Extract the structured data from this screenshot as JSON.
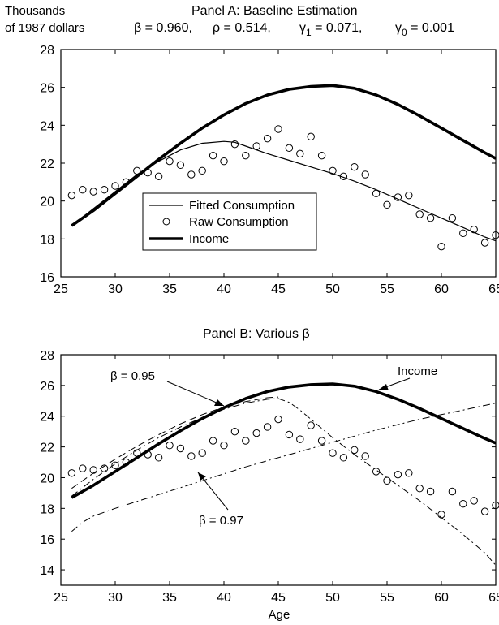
{
  "chart_data": [
    {
      "type": "line",
      "title": "Panel A: Baseline Estimation",
      "subtitle": {
        "prefix_beta": "β = 0.960,",
        "rho": "ρ = 0.514,",
        "gamma1": {
          "greek": "γ",
          "sub": "1",
          "rest": " = 0.071,"
        },
        "gamma0": {
          "greek": "γ",
          "sub": "0",
          "rest": " = 0.001"
        }
      },
      "ylabel_lines": [
        "Thousands",
        "of 1987 dollars"
      ],
      "xlabel": "",
      "xlim": [
        25,
        65
      ],
      "ylim": [
        16,
        28
      ],
      "xticks": [
        25,
        30,
        35,
        40,
        45,
        50,
        55,
        60,
        65
      ],
      "yticks": [
        16,
        18,
        20,
        22,
        24,
        26,
        28
      ],
      "legend": {
        "placement": "lower-center",
        "entries": [
          "Fitted Consumption",
          "Raw Consumption",
          "Income"
        ]
      },
      "series": [
        {
          "name": "Fitted Consumption",
          "style": "thin-solid",
          "x": [
            26,
            28,
            30,
            32,
            34,
            36,
            38,
            40,
            41,
            42,
            44,
            46,
            48,
            50,
            52,
            54,
            56,
            58,
            60,
            62,
            64,
            65
          ],
          "y": [
            18.7,
            19.6,
            20.5,
            21.4,
            22.1,
            22.7,
            23.05,
            23.15,
            23.1,
            22.9,
            22.5,
            22.15,
            21.8,
            21.45,
            21.05,
            20.6,
            20.1,
            19.6,
            19.1,
            18.6,
            18.1,
            17.9
          ]
        },
        {
          "name": "Raw Consumption",
          "style": "markers",
          "x": [
            26,
            27,
            28,
            29,
            30,
            31,
            32,
            33,
            34,
            35,
            36,
            37,
            38,
            39,
            40,
            41,
            42,
            43,
            44,
            45,
            46,
            47,
            48,
            49,
            50,
            51,
            52,
            53,
            54,
            55,
            56,
            57,
            58,
            59,
            60,
            61,
            62,
            63,
            64,
            65
          ],
          "y": [
            20.3,
            20.6,
            20.5,
            20.6,
            20.8,
            21.0,
            21.6,
            21.5,
            21.3,
            22.1,
            21.9,
            21.4,
            21.6,
            22.4,
            22.1,
            23.0,
            22.4,
            22.9,
            23.3,
            23.8,
            22.8,
            22.5,
            23.4,
            22.4,
            21.6,
            21.3,
            21.8,
            21.4,
            20.4,
            19.8,
            20.2,
            20.3,
            19.3,
            19.1,
            17.6,
            19.1,
            18.3,
            18.5,
            17.8,
            18.2
          ]
        },
        {
          "name": "Income",
          "style": "thick-solid",
          "x": [
            26,
            28,
            30,
            32,
            34,
            36,
            38,
            40,
            42,
            44,
            46,
            48,
            50,
            52,
            54,
            56,
            58,
            60,
            62,
            64,
            65
          ],
          "y": [
            18.7,
            19.5,
            20.4,
            21.3,
            22.2,
            23.05,
            23.85,
            24.55,
            25.15,
            25.6,
            25.9,
            26.05,
            26.1,
            25.95,
            25.6,
            25.1,
            24.5,
            23.85,
            23.2,
            22.55,
            22.25
          ]
        }
      ]
    },
    {
      "type": "line",
      "title": "Panel B: Various    β",
      "xlabel": "Age",
      "xlim": [
        25,
        65
      ],
      "ylim": [
        13,
        28
      ],
      "xticks": [
        25,
        30,
        35,
        40,
        45,
        50,
        55,
        60,
        65
      ],
      "yticks": [
        14,
        16,
        18,
        20,
        22,
        24,
        26,
        28
      ],
      "annotations": [
        {
          "text": "β = 0.95",
          "target": "β = 0.95"
        },
        {
          "text": "β = 0.97",
          "target": "β = 0.97"
        },
        {
          "text": "Income",
          "target": "Income"
        }
      ],
      "series": [
        {
          "name": "β = 0.95",
          "style": "dashed",
          "x": [
            26,
            28,
            30,
            32,
            34,
            36,
            38,
            40,
            42,
            44,
            45
          ],
          "y": [
            19.3,
            20.3,
            21.2,
            22.05,
            22.8,
            23.5,
            24.1,
            24.6,
            24.95,
            25.2,
            25.25
          ]
        },
        {
          "name": "β = 0.97",
          "style": "dash-dot",
          "x": [
            26,
            27,
            28,
            30,
            32,
            34,
            36,
            38,
            40,
            42,
            44,
            46,
            48,
            50,
            52,
            54,
            56,
            58,
            60,
            62,
            64,
            65
          ],
          "y": [
            16.5,
            17.1,
            17.5,
            18.0,
            18.45,
            18.9,
            19.35,
            19.8,
            20.25,
            20.7,
            21.1,
            21.5,
            21.9,
            22.3,
            22.7,
            23.1,
            23.45,
            23.8,
            24.1,
            24.4,
            24.7,
            24.85
          ]
        },
        {
          "name": "β = 0.96",
          "style": "dash-dot",
          "x": [
            26,
            28,
            30,
            32,
            34,
            36,
            38,
            40,
            42,
            44,
            45,
            46,
            47,
            48,
            50,
            52,
            54,
            56,
            58,
            60,
            62,
            64,
            65
          ],
          "y": [
            18.8,
            19.9,
            20.9,
            21.8,
            22.6,
            23.3,
            23.9,
            24.45,
            24.85,
            25.1,
            25.15,
            24.9,
            24.4,
            23.8,
            22.6,
            21.5,
            20.5,
            19.5,
            18.5,
            17.4,
            16.3,
            15.1,
            14.3
          ]
        },
        {
          "name": "Raw Consumption",
          "style": "markers",
          "x": [
            26,
            27,
            28,
            29,
            30,
            31,
            32,
            33,
            34,
            35,
            36,
            37,
            38,
            39,
            40,
            41,
            42,
            43,
            44,
            45,
            46,
            47,
            48,
            49,
            50,
            51,
            52,
            53,
            54,
            55,
            56,
            57,
            58,
            59,
            60,
            61,
            62,
            63,
            64,
            65
          ],
          "y": [
            20.3,
            20.6,
            20.5,
            20.6,
            20.8,
            21.0,
            21.6,
            21.5,
            21.3,
            22.1,
            21.9,
            21.4,
            21.6,
            22.4,
            22.1,
            23.0,
            22.4,
            22.9,
            23.3,
            23.8,
            22.8,
            22.5,
            23.4,
            22.4,
            21.6,
            21.3,
            21.8,
            21.4,
            20.4,
            19.8,
            20.2,
            20.3,
            19.3,
            19.1,
            17.6,
            19.1,
            18.3,
            18.5,
            17.8,
            18.2
          ]
        },
        {
          "name": "Income",
          "style": "thick-solid",
          "x": [
            26,
            28,
            30,
            32,
            34,
            36,
            38,
            40,
            42,
            44,
            46,
            48,
            50,
            52,
            54,
            56,
            58,
            60,
            62,
            64,
            65
          ],
          "y": [
            18.7,
            19.5,
            20.4,
            21.3,
            22.2,
            23.05,
            23.85,
            24.55,
            25.15,
            25.6,
            25.9,
            26.05,
            26.1,
            25.95,
            25.6,
            25.1,
            24.5,
            23.85,
            23.2,
            22.55,
            22.25
          ]
        }
      ]
    }
  ]
}
